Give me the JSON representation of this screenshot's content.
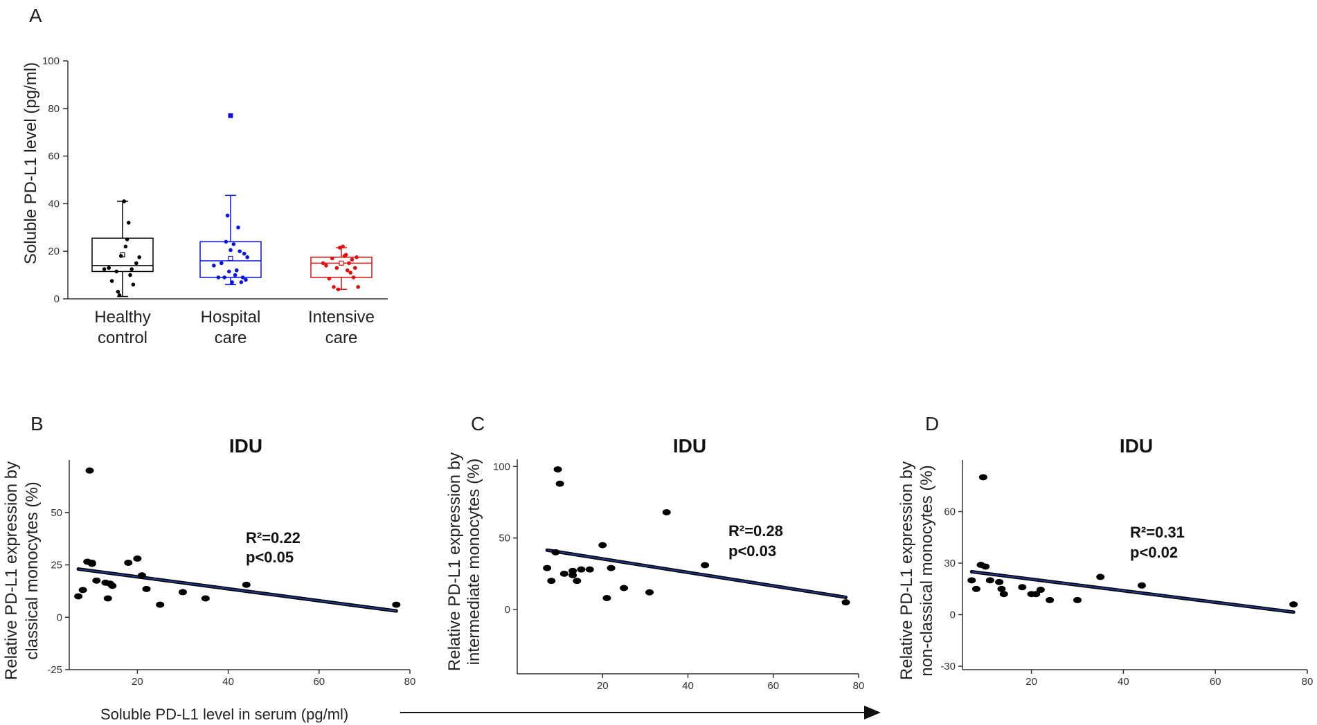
{
  "colors": {
    "healthy": "#000000",
    "hospital": "#0a14e0",
    "intensive": "#e01010",
    "regression": "#1f3a8a",
    "axis": "#333333"
  },
  "panel_a": {
    "letter": "A",
    "ylabel": "Soluble PD-L1 level (pg/ml)",
    "ylim": [
      0,
      100
    ],
    "yticks": [
      "0",
      "20",
      "40",
      "60",
      "80",
      "100"
    ],
    "groups": [
      {
        "label1": "Healthy",
        "label2": "control",
        "color": "healthy",
        "q1": 11.5,
        "median": 14,
        "q3": 25.5,
        "whisker_low": 1,
        "whisker_high": 41,
        "mean": 18.5,
        "outliers": [],
        "points": [
          [
            -0.6,
            12.5
          ],
          [
            -0.45,
            13
          ],
          [
            -0.35,
            7.5
          ],
          [
            -0.2,
            11.5
          ],
          [
            -0.15,
            3
          ],
          [
            -0.1,
            1.5
          ],
          [
            0.05,
            41
          ],
          [
            -0.05,
            18
          ],
          [
            0.2,
            32
          ],
          [
            0.1,
            22
          ],
          [
            0.25,
            10
          ],
          [
            0.35,
            6
          ],
          [
            0.45,
            15
          ],
          [
            0.3,
            12.5
          ],
          [
            0.55,
            17.5
          ],
          [
            0.15,
            25
          ]
        ]
      },
      {
        "label1": "Hospital",
        "label2": "care",
        "color": "hospital",
        "q1": 9,
        "median": 16,
        "q3": 24,
        "whisker_low": 6,
        "whisker_high": 43.5,
        "mean": 17,
        "outliers": [
          77
        ],
        "points": [
          [
            -0.55,
            14
          ],
          [
            -0.4,
            9
          ],
          [
            -0.2,
            9
          ],
          [
            -0.3,
            15
          ],
          [
            -0.15,
            24
          ],
          [
            -0.1,
            35
          ],
          [
            -0.05,
            11.5
          ],
          [
            0.05,
            7
          ],
          [
            0.1,
            23
          ],
          [
            0.2,
            12
          ],
          [
            0.25,
            30
          ],
          [
            0.3,
            20
          ],
          [
            0.35,
            7
          ],
          [
            0.4,
            9
          ],
          [
            0.45,
            19
          ],
          [
            0.55,
            17.5
          ],
          [
            0.5,
            8
          ],
          [
            0.15,
            10
          ],
          [
            0.0,
            20.5
          ]
        ]
      },
      {
        "label1": "Intensive",
        "label2": "care",
        "color": "intensive",
        "q1": 9,
        "median": 15,
        "q3": 17.5,
        "whisker_low": 4,
        "whisker_high": 21.5,
        "mean": 15,
        "outliers": [],
        "points": [
          [
            -0.6,
            15
          ],
          [
            -0.5,
            14
          ],
          [
            -0.4,
            8.5
          ],
          [
            -0.3,
            17
          ],
          [
            -0.25,
            5
          ],
          [
            -0.1,
            4
          ],
          [
            -0.05,
            21.5
          ],
          [
            0.05,
            22
          ],
          [
            0.1,
            18
          ],
          [
            0.2,
            12
          ],
          [
            0.25,
            15
          ],
          [
            0.3,
            11
          ],
          [
            0.35,
            16.5
          ],
          [
            0.4,
            9
          ],
          [
            0.45,
            13
          ],
          [
            0.5,
            17.5
          ],
          [
            0.55,
            5
          ],
          [
            0.15,
            18.5
          ],
          [
            -0.15,
            13
          ]
        ]
      }
    ]
  },
  "chart_data": [
    {
      "type": "box",
      "title": "",
      "xlabel": "",
      "ylabel": "Soluble PD-L1 level (pg/ml)",
      "categories": [
        "Healthy control",
        "Hospital care",
        "Intensive care"
      ],
      "medians": [
        14,
        16,
        15
      ],
      "q1": [
        11.5,
        9,
        9
      ],
      "q3": [
        25.5,
        24,
        17.5
      ],
      "ylim": [
        0,
        100
      ]
    },
    {
      "type": "scatter",
      "title": "IDU",
      "xlabel": "Soluble PD-L1 level in serum (pg/ml)",
      "ylabel": "Relative PD-L1 expression by classical monocytes (%)",
      "xlim": [
        5,
        80
      ],
      "ylim": [
        -25,
        75
      ],
      "x": [
        7,
        8,
        9,
        9.5,
        10,
        10,
        11,
        13,
        13.5,
        14,
        14.5,
        18,
        20,
        21,
        22,
        25,
        30,
        35,
        44,
        77
      ],
      "y": [
        10,
        13,
        26.5,
        70,
        26,
        25.5,
        17.5,
        16.5,
        9,
        16,
        15,
        26,
        28,
        20,
        13.5,
        6,
        12,
        9,
        15.5,
        6
      ],
      "regression": {
        "x": [
          7,
          77
        ],
        "y": [
          23,
          3
        ]
      },
      "annotation": [
        "R²=0.22",
        "p<0.05"
      ]
    },
    {
      "type": "scatter",
      "title": "IDU",
      "xlabel": "Soluble PD-L1 level in serum (pg/ml)",
      "ylabel": "Relative PD-L1 expression by intermediate monocytes (%)",
      "xlim": [
        0,
        80
      ],
      "ylim": [
        -45,
        105
      ],
      "x": [
        7,
        8,
        9,
        9.5,
        10,
        11,
        13,
        13,
        14,
        15,
        17,
        20,
        21,
        22,
        25,
        31,
        35,
        44,
        77
      ],
      "y": [
        29,
        20,
        40,
        98,
        88,
        25,
        27,
        24,
        20,
        28,
        28,
        45,
        8,
        29,
        15,
        12,
        68,
        31,
        5
      ],
      "regression": {
        "x": [
          7,
          77
        ],
        "y": [
          41.5,
          8.5
        ]
      },
      "annotation": [
        "R²=0.28",
        "p<0.03"
      ]
    },
    {
      "type": "scatter",
      "title": "IDU",
      "xlabel": "Soluble PD-L1 level in serum (pg/ml)",
      "ylabel": "Relative PD-L1 expression by non-classical monocytes (%)",
      "xlim": [
        5,
        80
      ],
      "ylim": [
        -32,
        90
      ],
      "x": [
        7,
        8,
        9,
        9.5,
        10,
        11,
        13,
        13.5,
        14,
        18,
        20,
        21,
        22,
        24,
        30,
        35,
        44,
        77
      ],
      "y": [
        20,
        15,
        29,
        80,
        28,
        20,
        19,
        15,
        12,
        16,
        12,
        12,
        14.5,
        8.5,
        8.5,
        22,
        17,
        6
      ],
      "regression": {
        "x": [
          7,
          77
        ],
        "y": [
          25,
          1.5
        ]
      },
      "annotation": [
        "R²=0.31",
        "p<0.02"
      ]
    }
  ],
  "panels_scatter": [
    {
      "letter": "B",
      "title": "IDU",
      "ylabel1": "Relative PD-L1 expression by",
      "ylabel2": "classical monocytes (%)",
      "yticks": [
        "-25",
        "0",
        "25",
        "50"
      ],
      "xticks": [
        "20",
        "40",
        "60",
        "80"
      ],
      "stat1": "R²=0.22",
      "stat2": "p<0.05"
    },
    {
      "letter": "C",
      "title": "IDU",
      "ylabel1": "Relative PD-L1 expression by",
      "ylabel2": "intermediate monocytes (%)",
      "yticks": [
        "0",
        "50",
        "100"
      ],
      "xticks": [
        "20",
        "40",
        "60",
        "80"
      ],
      "stat1": "R²=0.28",
      "stat2": "p<0.03"
    },
    {
      "letter": "D",
      "title": "IDU",
      "ylabel1": "Relative PD-L1 expression by",
      "ylabel2": "non-classical monocytes (%)",
      "yticks": [
        "-30",
        "0",
        "30",
        "60"
      ],
      "xticks": [
        "20",
        "40",
        "60",
        "80"
      ],
      "stat1": "R²=0.31",
      "stat2": "p<0.02"
    }
  ],
  "shared_xlabel": "Soluble PD-L1 level in serum (pg/ml)"
}
